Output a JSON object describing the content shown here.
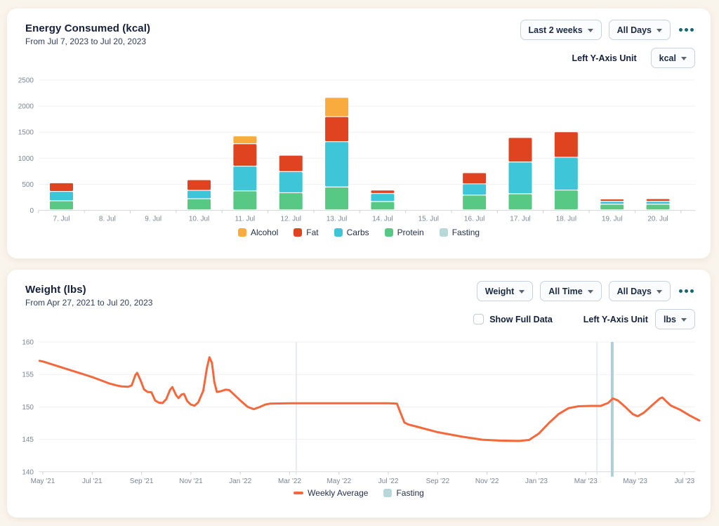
{
  "page": {
    "background_color": "#f9f4ec",
    "card_color": "#ffffff",
    "accent_teal": "#15666d"
  },
  "energy_panel": {
    "title": "Energy Consumed (kcal)",
    "subtitle": "From Jul 7, 2023 to Jul 20, 2023",
    "controls": {
      "range_dropdown": "Last 2 weeks",
      "days_dropdown": "All Days",
      "axis_unit_label": "Left Y-Axis Unit",
      "axis_unit_dropdown": "kcal"
    },
    "chart_data": {
      "type": "bar",
      "stacked": true,
      "categories": [
        "7. Jul",
        "8. Jul",
        "9. Jul",
        "10. Jul",
        "11. Jul",
        "12. Jul",
        "13. Jul",
        "14. Jul",
        "15. Jul",
        "16. Jul",
        "17. Jul",
        "18. Jul",
        "19. Jul",
        "20. Jul"
      ],
      "series": [
        {
          "name": "Protein",
          "color": "#57c984",
          "values": [
            175,
            0,
            0,
            215,
            365,
            330,
            440,
            160,
            0,
            285,
            310,
            380,
            110,
            110
          ]
        },
        {
          "name": "Carbs",
          "color": "#3fc5d8",
          "values": [
            180,
            0,
            0,
            160,
            475,
            405,
            870,
            155,
            0,
            215,
            610,
            630,
            55,
            55
          ]
        },
        {
          "name": "Fat",
          "color": "#e0431f",
          "values": [
            165,
            0,
            0,
            205,
            430,
            315,
            480,
            65,
            0,
            215,
            470,
            490,
            45,
            50
          ]
        },
        {
          "name": "Alcohol",
          "color": "#f9ab3d",
          "values": [
            0,
            0,
            0,
            0,
            150,
            0,
            370,
            0,
            0,
            0,
            0,
            0,
            0,
            0
          ]
        }
      ],
      "title": "Energy Consumed (kcal)",
      "xlabel": "",
      "ylabel": "kcal",
      "ylim": [
        0,
        2500
      ],
      "yticks": [
        0,
        500,
        1000,
        1500,
        2000,
        2500
      ],
      "grid": true,
      "legend_position": "bottom"
    },
    "legend": [
      {
        "label": "Alcohol",
        "color": "#f9ab3d"
      },
      {
        "label": "Fat",
        "color": "#e0431f"
      },
      {
        "label": "Carbs",
        "color": "#3fc5d8"
      },
      {
        "label": "Protein",
        "color": "#57c984"
      },
      {
        "label": "Fasting",
        "color": "#b7d7d8"
      }
    ]
  },
  "weight_panel": {
    "title": "Weight (lbs)",
    "subtitle": "From Apr 27, 2021 to Jul 20, 2023",
    "controls": {
      "metric_dropdown": "Weight",
      "time_dropdown": "All Time",
      "days_dropdown": "All Days",
      "show_full_data_label": "Show Full Data",
      "show_full_data_checked": false,
      "axis_unit_label": "Left Y-Axis Unit",
      "axis_unit_dropdown": "lbs"
    },
    "chart_data": {
      "type": "line",
      "title": "Weight (lbs)",
      "x_unit": "months since May 2021",
      "x_tick_positions": [
        0,
        2,
        4,
        6,
        8,
        10,
        12,
        14,
        16,
        18,
        20,
        22,
        24,
        26
      ],
      "x_tick_labels": [
        "May '21",
        "Jul '21",
        "Sep '21",
        "Nov '21",
        "Jan '22",
        "Mar '22",
        "May '22",
        "Jul '22",
        "Sep '22",
        "Nov '22",
        "Jan '23",
        "Mar '23",
        "May '23",
        "Jul '23"
      ],
      "ylim": [
        140,
        160
      ],
      "yticks": [
        140,
        145,
        150,
        155,
        160
      ],
      "grid": true,
      "series": [
        {
          "name": "Weekly Average",
          "color": "#f4683c",
          "points": [
            [
              -0.13,
              157.1
            ],
            [
              0,
              157.0
            ],
            [
              1,
              155.8
            ],
            [
              2,
              154.6
            ],
            [
              2.7,
              153.6
            ],
            [
              3.0,
              153.3
            ],
            [
              3.2,
              153.15
            ],
            [
              3.45,
              153.1
            ],
            [
              3.6,
              153.3
            ],
            [
              3.75,
              154.9
            ],
            [
              3.82,
              155.25
            ],
            [
              3.95,
              154.2
            ],
            [
              4.1,
              152.7
            ],
            [
              4.25,
              152.3
            ],
            [
              4.4,
              152.25
            ],
            [
              4.55,
              151.0
            ],
            [
              4.7,
              150.65
            ],
            [
              4.85,
              150.6
            ],
            [
              5.0,
              151.2
            ],
            [
              5.15,
              152.6
            ],
            [
              5.25,
              153.05
            ],
            [
              5.4,
              151.8
            ],
            [
              5.5,
              151.35
            ],
            [
              5.62,
              151.9
            ],
            [
              5.72,
              152.0
            ],
            [
              5.85,
              150.9
            ],
            [
              6.0,
              150.35
            ],
            [
              6.15,
              150.2
            ],
            [
              6.3,
              150.7
            ],
            [
              6.5,
              152.5
            ],
            [
              6.65,
              156.0
            ],
            [
              6.75,
              157.65
            ],
            [
              6.85,
              156.8
            ],
            [
              6.95,
              153.8
            ],
            [
              7.05,
              152.3
            ],
            [
              7.2,
              152.4
            ],
            [
              7.4,
              152.65
            ],
            [
              7.55,
              152.6
            ],
            [
              7.75,
              151.9
            ],
            [
              8.0,
              151.0
            ],
            [
              8.3,
              150.0
            ],
            [
              8.55,
              149.65
            ],
            [
              8.8,
              150.0
            ],
            [
              9.0,
              150.35
            ],
            [
              9.2,
              150.5
            ],
            [
              10,
              150.55
            ],
            [
              12,
              150.55
            ],
            [
              14,
              150.55
            ],
            [
              14.35,
              150.5
            ],
            [
              14.5,
              149.0
            ],
            [
              14.65,
              147.6
            ],
            [
              14.8,
              147.3
            ],
            [
              15.2,
              146.9
            ],
            [
              16,
              146.1
            ],
            [
              17,
              145.4
            ],
            [
              17.8,
              144.95
            ],
            [
              18.5,
              144.8
            ],
            [
              19.3,
              144.75
            ],
            [
              19.7,
              144.9
            ],
            [
              20.1,
              145.9
            ],
            [
              20.5,
              147.5
            ],
            [
              20.9,
              148.9
            ],
            [
              21.3,
              149.8
            ],
            [
              21.7,
              150.1
            ],
            [
              22.2,
              150.15
            ],
            [
              22.6,
              150.15
            ],
            [
              22.9,
              150.6
            ],
            [
              23.1,
              151.3
            ],
            [
              23.3,
              151.0
            ],
            [
              23.6,
              150.0
            ],
            [
              23.9,
              148.9
            ],
            [
              24.1,
              148.55
            ],
            [
              24.35,
              149.1
            ],
            [
              24.7,
              150.3
            ],
            [
              25.0,
              151.3
            ],
            [
              25.1,
              151.45
            ],
            [
              25.25,
              150.9
            ],
            [
              25.45,
              150.2
            ],
            [
              25.8,
              149.6
            ],
            [
              26.2,
              148.7
            ],
            [
              26.6,
              147.9
            ]
          ]
        }
      ],
      "fasting_markers": [
        {
          "m": 10.27,
          "style": "thin"
        },
        {
          "m": 22.45,
          "style": "thin"
        },
        {
          "m": 23.07,
          "style": "thick"
        }
      ],
      "marker_colors": {
        "thin": "#dfe7ea",
        "thick": "#aed0d6"
      }
    },
    "legend": [
      {
        "label": "Weekly Average",
        "color": "#f4683c",
        "shape": "line"
      },
      {
        "label": "Fasting",
        "color": "#b7d7d8",
        "shape": "square"
      }
    ]
  }
}
